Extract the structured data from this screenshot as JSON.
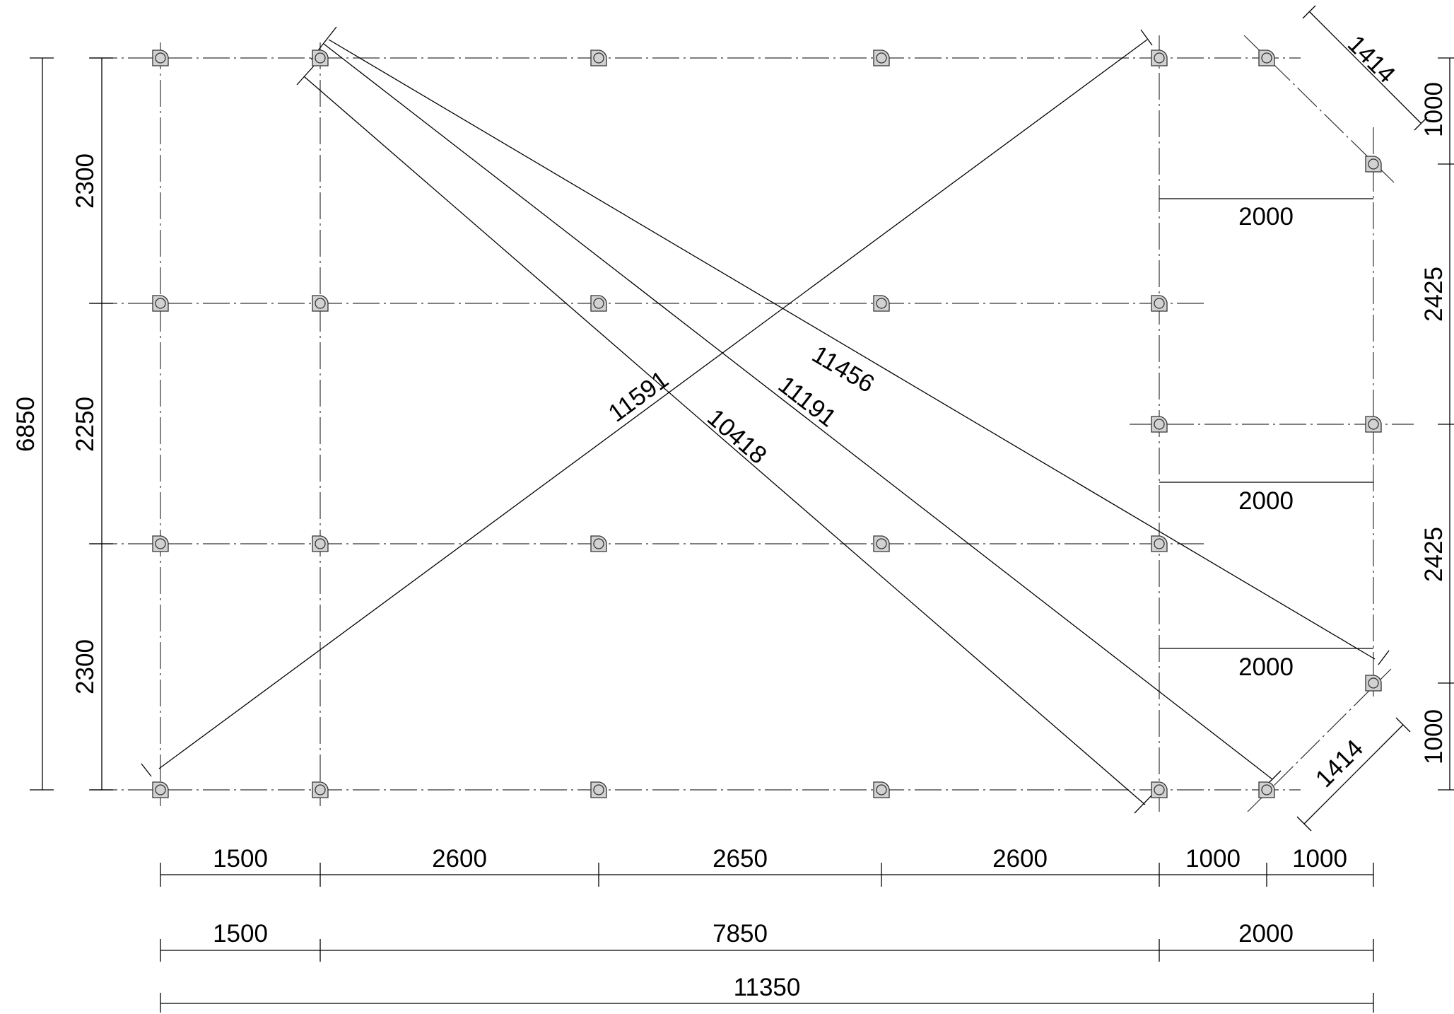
{
  "dimensions": {
    "overall_width": "11350",
    "overall_height": "6850",
    "bottom_row1": [
      "1500",
      "2600",
      "2650",
      "2600",
      "1000",
      "1000"
    ],
    "bottom_row2": [
      "1500",
      "7850",
      "2000"
    ],
    "left_segments": [
      "2300",
      "2250",
      "2300"
    ],
    "right_segments": [
      "1000",
      "2425",
      "2425",
      "1000"
    ],
    "inner_horizontal": [
      "2000",
      "2000",
      "2000"
    ],
    "chamfer_top": "1414",
    "chamfer_bottom": "1414"
  },
  "diagonals": {
    "d1": "11591",
    "d2": "10418",
    "d3": "11191",
    "d4": "11456"
  }
}
